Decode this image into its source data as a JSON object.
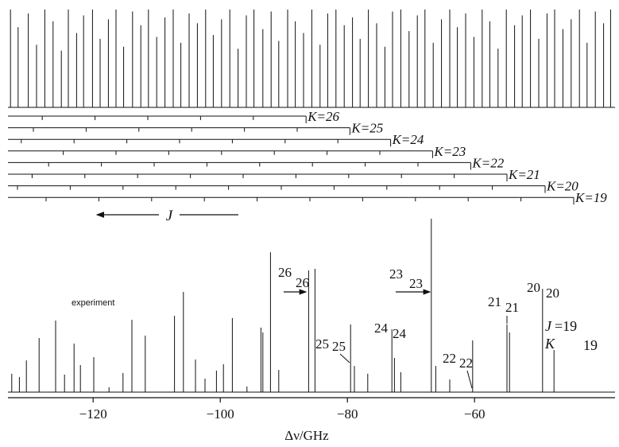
{
  "chart_data": {
    "type": "stick",
    "xlabel": "Δν/GHz",
    "xlim": [
      -133.4,
      -37.9
    ],
    "xticks": [
      {
        "value": -120,
        "label": "−120"
      },
      {
        "value": -100,
        "label": "−100"
      },
      {
        "value": -80,
        "label": "−80"
      },
      {
        "value": -60,
        "label": "−60"
      }
    ],
    "simulation": {
      "x": [
        -133.0,
        -131.8,
        -130.2,
        -128.9,
        -127.6,
        -126.3,
        -125.0,
        -123.9,
        -122.6,
        -121.5,
        -120.1,
        -118.9,
        -117.6,
        -116.4,
        -115.2,
        -113.8,
        -112.5,
        -111.3,
        -110.0,
        -108.7,
        -107.4,
        -106.2,
        -104.9,
        -103.6,
        -102.3,
        -101.1,
        -99.8,
        -98.5,
        -97.2,
        -95.9,
        -94.7,
        -93.3,
        -92.0,
        -90.8,
        -89.4,
        -88.2,
        -86.9,
        -85.6,
        -84.3,
        -83.1,
        -81.8,
        -80.5,
        -79.2,
        -78.0,
        -76.7,
        -75.4,
        -74.1,
        -72.9,
        -71.6,
        -70.3,
        -69.0,
        -67.8,
        -66.5,
        -65.2,
        -63.9,
        -62.7,
        -61.4,
        -60.1,
        -58.8,
        -57.6,
        -56.3,
        -55.0,
        -53.7,
        -52.5,
        -51.2,
        -49.9,
        -48.6,
        -47.4,
        -46.1,
        -44.8,
        -43.5,
        -42.3,
        -41.0,
        -39.7,
        -38.6
      ],
      "values": [
        100,
        82,
        96,
        64,
        100,
        88,
        58,
        100,
        76,
        94,
        100,
        70,
        90,
        100,
        62,
        98,
        84,
        100,
        72,
        92,
        100,
        66,
        96,
        86,
        100,
        74,
        90,
        100,
        60,
        94,
        100,
        80,
        98,
        68,
        100,
        88,
        76,
        100,
        64,
        96,
        100,
        84,
        92,
        70,
        100,
        86,
        62,
        98,
        100,
        78,
        94,
        100,
        66,
        90,
        100,
        82,
        96,
        72,
        100,
        88,
        60,
        100,
        84,
        94,
        100,
        70,
        96,
        100,
        80,
        90,
        100,
        66,
        98,
        86,
        100
      ]
    },
    "ladders": [
      {
        "label": "K=26",
        "ticks": [
          -86.5,
          -94.8,
          -103.1,
          -111.4,
          -119.7,
          -128.0
        ]
      },
      {
        "label": "K=25",
        "ticks": [
          -79.6,
          -87.9,
          -96.2,
          -104.5,
          -112.8,
          -121.1,
          -129.4
        ]
      },
      {
        "label": "K=24",
        "ticks": [
          -73.2,
          -81.5,
          -89.8,
          -98.1,
          -106.4,
          -114.7,
          -123.0,
          -131.3
        ]
      },
      {
        "label": "K=23",
        "ticks": [
          -66.6,
          -74.9,
          -83.2,
          -91.5,
          -99.8,
          -108.1,
          -116.4,
          -124.7
        ]
      },
      {
        "label": "K=22",
        "ticks": [
          -60.6,
          -68.9,
          -77.2,
          -85.5,
          -93.8,
          -102.1,
          -110.4,
          -118.7,
          -127.0
        ]
      },
      {
        "label": "K=21",
        "ticks": [
          -54.9,
          -63.2,
          -71.5,
          -79.8,
          -88.1,
          -96.4,
          -104.7,
          -113.0,
          -121.3,
          -129.6
        ]
      },
      {
        "label": "K=20",
        "ticks": [
          -48.9,
          -57.2,
          -65.5,
          -73.8,
          -82.1,
          -90.4,
          -98.7,
          -107.0,
          -115.3,
          -123.6,
          -131.9
        ]
      },
      {
        "label": "K=19",
        "ticks": [
          -44.4,
          -52.7,
          -61.0,
          -69.3,
          -77.6,
          -85.9,
          -94.2,
          -102.5,
          -110.8,
          -119.1,
          -127.4
        ]
      }
    ],
    "arrow_label": "J",
    "experiment_label": "experiment",
    "experiment": {
      "x": [
        -132.8,
        -131.6,
        -130.5,
        -128.5,
        -125.9,
        -124.5,
        -123.0,
        -122.0,
        -119.9,
        -117.5,
        -115.3,
        -113.9,
        -111.8,
        -107.2,
        -105.8,
        -103.9,
        -102.4,
        -100.6,
        -99.5,
        -98.1,
        -95.8,
        -93.6,
        -93.3,
        -92.1,
        -90.8,
        -86.1,
        -85.1,
        -79.5,
        -78.9,
        -76.8,
        -73.0,
        -72.6,
        -71.6,
        -66.8,
        -66.1,
        -63.9,
        -60.3,
        -54.9,
        -54.5,
        -49.3,
        -47.5
      ],
      "values": [
        10.6,
        8.7,
        18.3,
        31.2,
        41.3,
        10.1,
        28,
        15.6,
        20.2,
        2.8,
        11,
        41.7,
        32.6,
        44,
        57.8,
        18.8,
        7.8,
        12.4,
        16.1,
        42.7,
        3.2,
        37.2,
        34.4,
        80.7,
        12.8,
        70.2,
        71.1,
        39,
        15.1,
        10.6,
        36.2,
        19.7,
        11.5,
        100,
        15.1,
        7.3,
        29.8,
        39,
        34.4,
        59.6,
        24.3
      ]
    },
    "peak_labels": [
      {
        "text": "26",
        "sub": "26"
      },
      {
        "text": "25",
        "sub": "25"
      },
      {
        "text": "24",
        "sub": "24"
      },
      {
        "text": "23",
        "sub": "23"
      },
      {
        "text": "22",
        "sub": "22"
      },
      {
        "text": "21",
        "sub": "21"
      },
      {
        "text": "20",
        "sub": "20"
      }
    ],
    "final_label": {
      "j": "J",
      "j_value": "=19",
      "k": "K",
      "k_value": "19"
    }
  }
}
